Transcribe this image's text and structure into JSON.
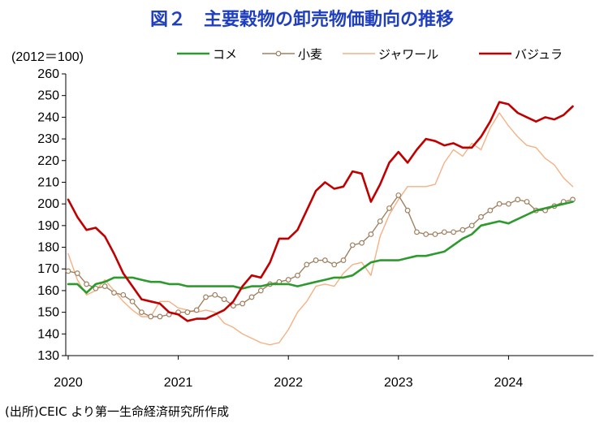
{
  "title": "図２　主要穀物の卸売物価動向の推移",
  "unit_label": "(2012＝100)",
  "source": "(出所)CEIC より第一生命経済研究所作成",
  "chart_data": {
    "type": "line",
    "ylim": [
      130,
      260
    ],
    "yticks": [
      130,
      140,
      150,
      160,
      170,
      180,
      190,
      200,
      210,
      220,
      230,
      240,
      250,
      260
    ],
    "xticks": [
      "2020",
      "2021",
      "2022",
      "2023",
      "2024"
    ],
    "legend_position": "top",
    "grid": false,
    "x_start": "2020-01",
    "months": 56,
    "series": [
      {
        "name": "コメ",
        "color": "#2e9a2e",
        "style": "solid-thick",
        "values": [
          163,
          163,
          159,
          163,
          164,
          166,
          166,
          166,
          165,
          164,
          164,
          163,
          163,
          162,
          162,
          162,
          162,
          162,
          162,
          161,
          162,
          162,
          163,
          163,
          163,
          162,
          163,
          164,
          165,
          166,
          166,
          167,
          170,
          173,
          174,
          174,
          174,
          175,
          176,
          176,
          177,
          178,
          181,
          184,
          186,
          190,
          191,
          192,
          191,
          193,
          195,
          197,
          198,
          199,
          200,
          201
        ]
      },
      {
        "name": "小麦",
        "color": "#a08060",
        "style": "markers",
        "values": [
          169,
          168,
          163,
          161,
          162,
          159,
          158,
          155,
          150,
          148,
          148,
          149,
          150,
          150,
          151,
          157,
          158,
          156,
          153,
          154,
          157,
          160,
          163,
          164,
          165,
          167,
          172,
          174,
          174,
          172,
          174,
          181,
          182,
          186,
          192,
          198,
          204,
          197,
          187,
          186,
          186,
          187,
          187,
          188,
          190,
          194,
          197,
          200,
          200,
          202,
          201,
          197,
          197,
          199,
          201,
          202
        ]
      },
      {
        "name": "ジャワール",
        "color": "#f4b183",
        "style": "solid-thin",
        "values": [
          177,
          165,
          158,
          160,
          165,
          160,
          155,
          151,
          148,
          148,
          155,
          155,
          152,
          151,
          150,
          151,
          150,
          145,
          143,
          140,
          138,
          136,
          135,
          136,
          142,
          150,
          155,
          162,
          163,
          162,
          168,
          172,
          173,
          167,
          185,
          195,
          202,
          208,
          208,
          208,
          209,
          219,
          225,
          222,
          228,
          225,
          235,
          242,
          236,
          231,
          227,
          226,
          221,
          218,
          212,
          208
        ]
      },
      {
        "name": "バジュラ",
        "color": "#c00000",
        "style": "solid-thick",
        "values": [
          202,
          194,
          188,
          189,
          185,
          177,
          168,
          162,
          156,
          155,
          154,
          150,
          149,
          146,
          147,
          147,
          149,
          151,
          155,
          162,
          167,
          166,
          173,
          184,
          184,
          188,
          197,
          206,
          210,
          207,
          208,
          215,
          214,
          201,
          209,
          219,
          224,
          219,
          225,
          230,
          229,
          227,
          228,
          226,
          226,
          231,
          238,
          247,
          246,
          242,
          240,
          238,
          240,
          239,
          241,
          245
        ]
      }
    ]
  }
}
